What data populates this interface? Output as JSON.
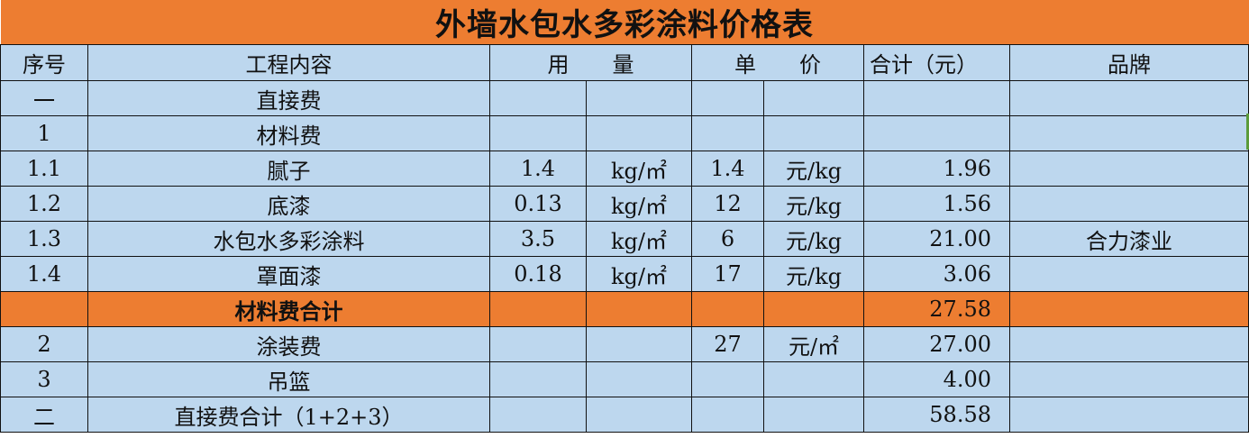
{
  "title": "外墙水包水多彩涂料价格表",
  "header": {
    "seq": "序号",
    "content": "工程内容",
    "quantity": "用　　量",
    "unit_price": "单　　价",
    "total": "合计（元）",
    "brand": "品牌"
  },
  "rows": [
    {
      "seq": "一",
      "content": "直接费",
      "qty": "",
      "qty_unit": "",
      "price": "",
      "price_unit": "",
      "total": "",
      "brand": ""
    },
    {
      "seq": "1",
      "content": "材料费",
      "qty": "",
      "qty_unit": "",
      "price": "",
      "price_unit": "",
      "total": "",
      "brand": ""
    },
    {
      "seq": "1.1",
      "content": "腻子",
      "qty": "1.4",
      "qty_unit": "kg/㎡",
      "price": "1.4",
      "price_unit": "元/kg",
      "total": "1.96",
      "brand": ""
    },
    {
      "seq": "1.2",
      "content": "底漆",
      "qty": "0.13",
      "qty_unit": "kg/㎡",
      "price": "12",
      "price_unit": "元/kg",
      "total": "1.56",
      "brand": ""
    },
    {
      "seq": "1.3",
      "content": "水包水多彩涂料",
      "qty": "3.5",
      "qty_unit": "kg/㎡",
      "price": "6",
      "price_unit": "元/kg",
      "total": "21.00",
      "brand": "合力漆业"
    },
    {
      "seq": "1.4",
      "content": "罩面漆",
      "qty": "0.18",
      "qty_unit": "kg/㎡",
      "price": "17",
      "price_unit": "元/kg",
      "total": "3.06",
      "brand": ""
    },
    {
      "seq": "",
      "content": "材料费合计",
      "qty": "",
      "qty_unit": "",
      "price": "",
      "price_unit": "",
      "total": "27.58",
      "brand": "",
      "highlight": true
    },
    {
      "seq": "2",
      "content": "涂装费",
      "qty": "",
      "qty_unit": "",
      "price": "27",
      "price_unit": "元/㎡",
      "total": "27.00",
      "brand": ""
    },
    {
      "seq": "3",
      "content": "吊篮",
      "qty": "",
      "qty_unit": "",
      "price": "",
      "price_unit": "",
      "total": "4.00",
      "brand": ""
    },
    {
      "seq": "二",
      "content": "直接费合计（1+2+3）",
      "qty": "",
      "qty_unit": "",
      "price": "",
      "price_unit": "",
      "total": "58.58",
      "brand": ""
    }
  ],
  "colors": {
    "title_bg": "#ED7D31",
    "cell_bg": "#BDD7EE",
    "highlight_bg": "#ED7D31"
  }
}
